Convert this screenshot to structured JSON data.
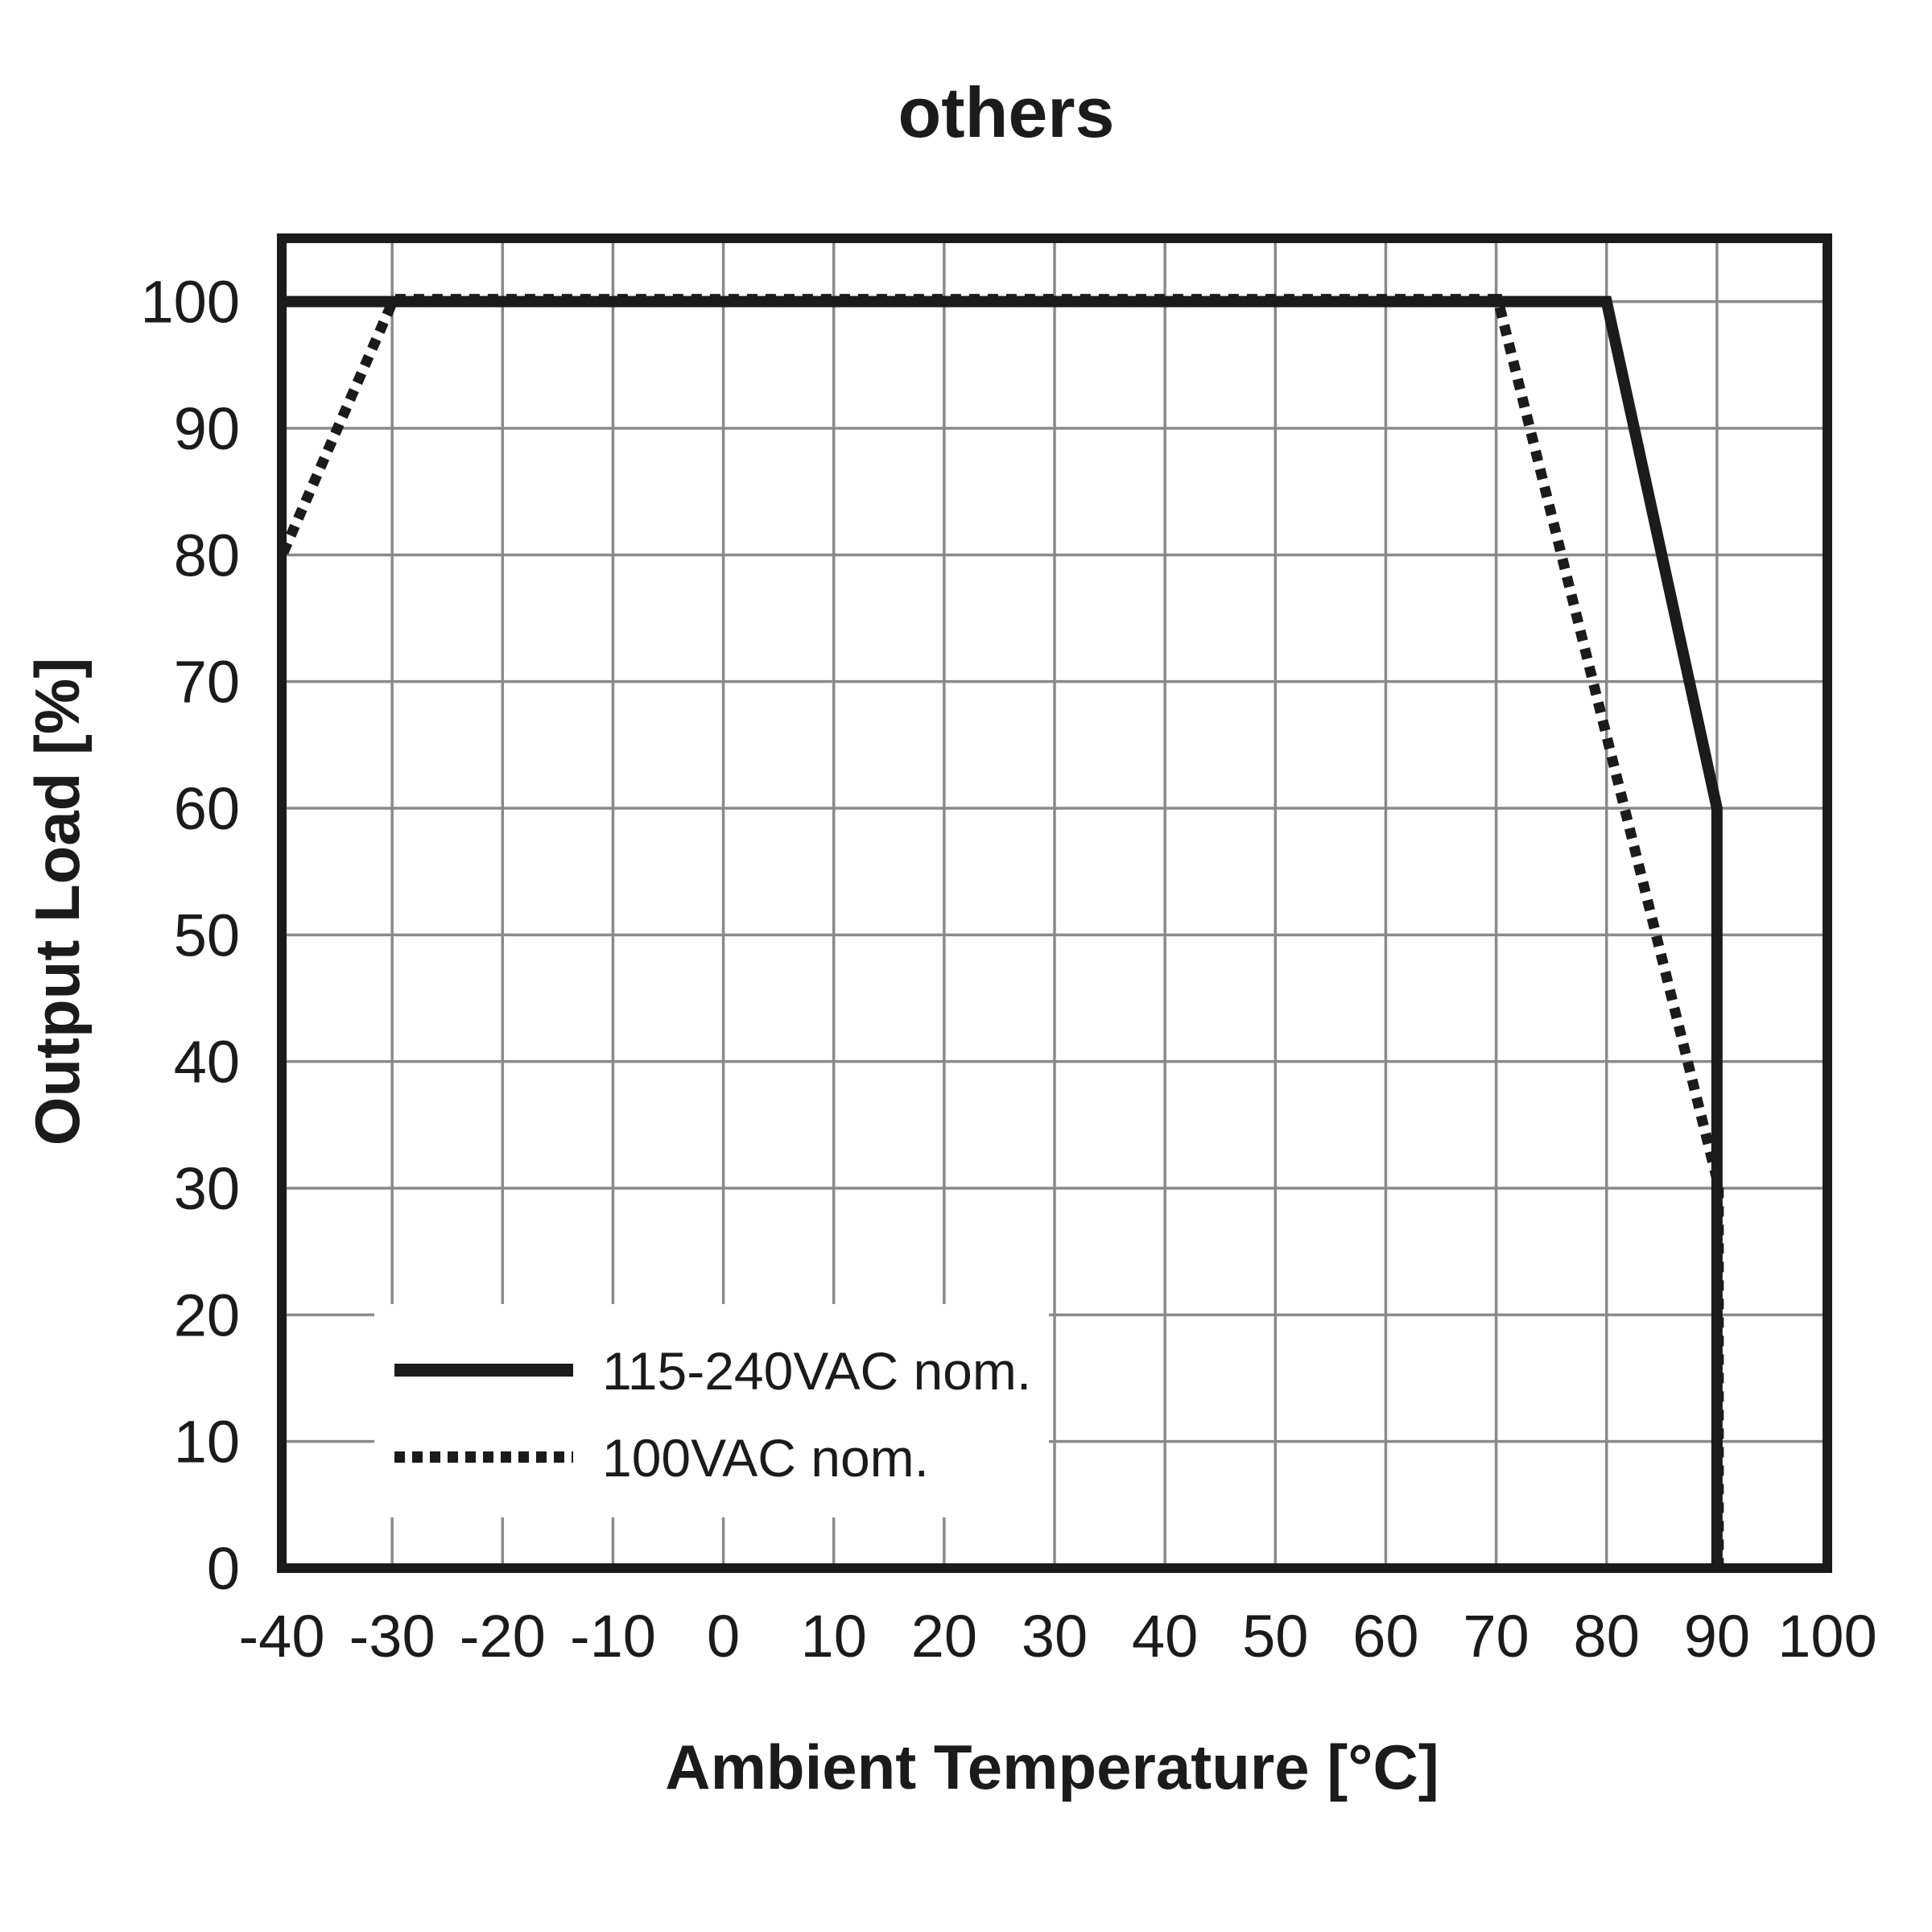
{
  "title": "others",
  "chart_data": {
    "type": "line",
    "title": "others",
    "xlabel": "Ambient Temperature [°C]",
    "ylabel": "Output Load [%]",
    "xlim": [
      -40,
      100
    ],
    "ylim": [
      0,
      105
    ],
    "xticks": [
      -40,
      -30,
      -20,
      -10,
      0,
      10,
      20,
      30,
      40,
      50,
      60,
      70,
      80,
      90,
      100
    ],
    "yticks": [
      0,
      10,
      20,
      30,
      40,
      50,
      60,
      70,
      80,
      90,
      100
    ],
    "grid": true,
    "legend_position": "inside-bottom-left",
    "series": [
      {
        "name": "115-240VAC nom.",
        "style": "solid",
        "points": [
          [
            -40,
            100
          ],
          [
            80,
            100
          ],
          [
            90,
            60
          ],
          [
            90,
            0
          ]
        ]
      },
      {
        "name": "100VAC nom.",
        "style": "dotted",
        "points": [
          [
            -40,
            80
          ],
          [
            -30,
            100
          ],
          [
            70,
            100
          ],
          [
            90,
            30
          ],
          [
            90,
            0
          ]
        ]
      }
    ],
    "colors": {
      "line": "#1b1b1b",
      "grid": "#8a8a8a",
      "frame": "#1b1b1b",
      "background": "#ffffff"
    }
  }
}
